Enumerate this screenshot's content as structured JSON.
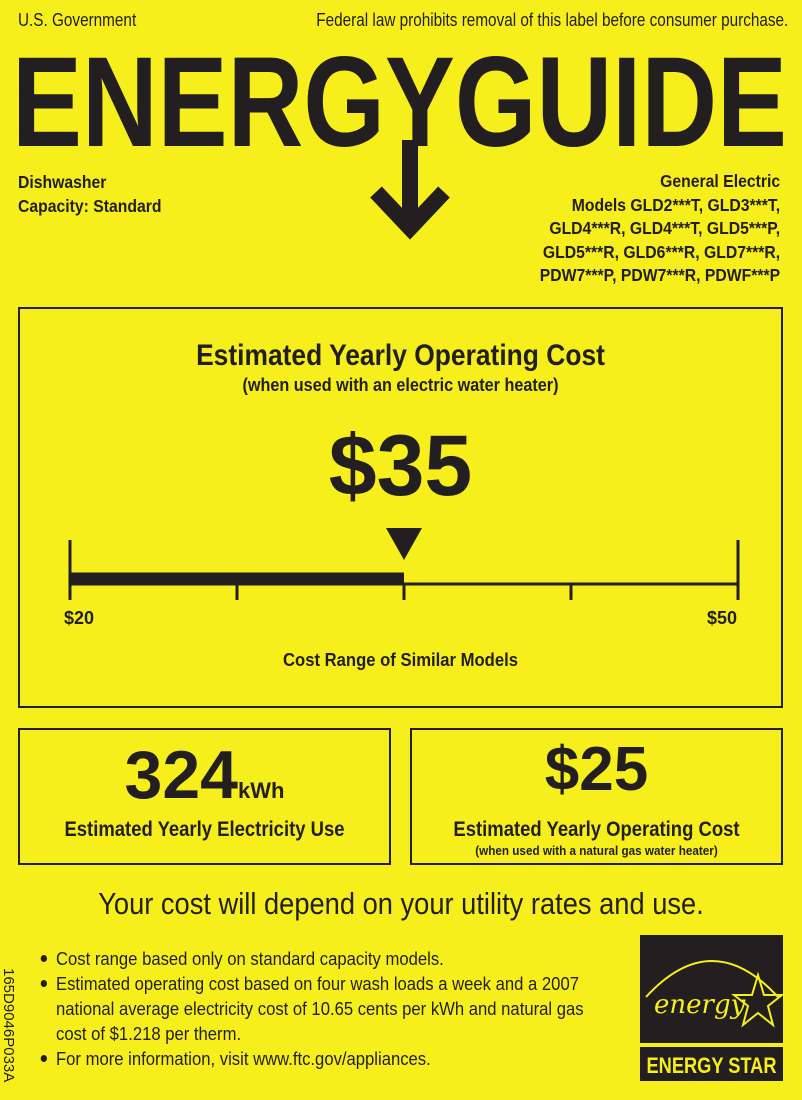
{
  "header": {
    "left": "U.S. Government",
    "right": "Federal law prohibits removal of this label before consumer purchase.",
    "logo_text": "ENERGYGUIDE"
  },
  "product": {
    "type": "Dishwasher",
    "capacity": "Capacity: Standard",
    "manufacturer": "General Electric",
    "models": [
      "Models GLD2***T, GLD3***T,",
      "GLD4***R, GLD4***T, GLD5***P,",
      "GLD5***R, GLD6***R, GLD7***R,",
      "PDW7***P, PDW7***R, PDWF***P"
    ]
  },
  "main_cost": {
    "title": "Estimated Yearly Operating Cost",
    "subtitle": "(when used with an electric water heater)",
    "value": "$35",
    "value_number": 35,
    "range_min": 20,
    "range_max": 50,
    "min_label": "$20",
    "max_label": "$50",
    "range_caption": "Cost Range of Similar Models"
  },
  "electricity": {
    "value": "324",
    "unit": "kWh",
    "label": "Estimated Yearly Electricity Use"
  },
  "gas_cost": {
    "value": "$25",
    "label": "Estimated Yearly Operating Cost",
    "sublabel": "(when used with a natural gas water heater)"
  },
  "disclaimer": "Your cost will depend on your utility rates and use.",
  "bullets": [
    "Cost range based only on standard capacity models.",
    "Estimated operating cost based on four wash loads a week and a 2007 national average electricity cost of 10.65 cents per kWh and natural gas cost of $1.218 per therm.",
    "For more information, visit www.ftc.gov/appliances."
  ],
  "side_code": "165D9046P033A",
  "energy_star": {
    "script": "energy",
    "label": "ENERGY STAR"
  },
  "colors": {
    "background": "#f6ef1c",
    "ink": "#231f20"
  }
}
